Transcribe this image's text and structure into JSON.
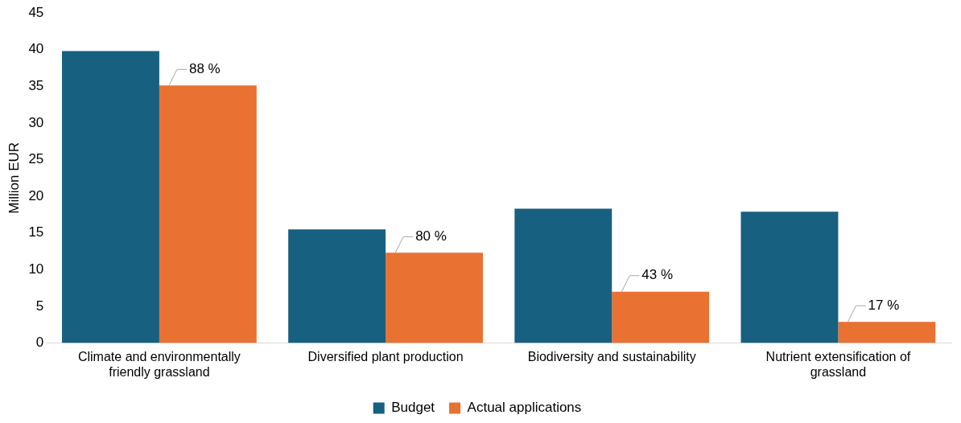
{
  "chart_data": {
    "type": "bar",
    "ylabel": "Million EUR",
    "categories": [
      "Climate and environmentally friendly grassland",
      "Diversified plant production",
      "Biodiversity and sustainability",
      "Nutrient extensification of grassland"
    ],
    "series": [
      {
        "name": "Budget",
        "color": "#17607f",
        "values": [
          39.8,
          15.5,
          18.3,
          17.9
        ]
      },
      {
        "name": "Actual applications",
        "color": "#e97132",
        "values": [
          35.1,
          12.3,
          7.0,
          2.9
        ]
      }
    ],
    "annotations": [
      {
        "text": "88 %",
        "x": "Climate and environmentally friendly grassland",
        "y": 35.1
      },
      {
        "text": "80 %",
        "x": "Diversified plant production",
        "y": 12.3
      },
      {
        "text": "43 %",
        "x": "Biodiversity and sustainability",
        "y": 7.0
      },
      {
        "text": "17 %",
        "x": "Nutrient extensification of grassland",
        "y": 2.9
      }
    ],
    "ylim": [
      0,
      45
    ],
    "yticks": [
      0,
      5,
      10,
      15,
      20,
      25,
      30,
      35,
      40,
      45
    ],
    "grid": false,
    "legend": "bottom"
  }
}
